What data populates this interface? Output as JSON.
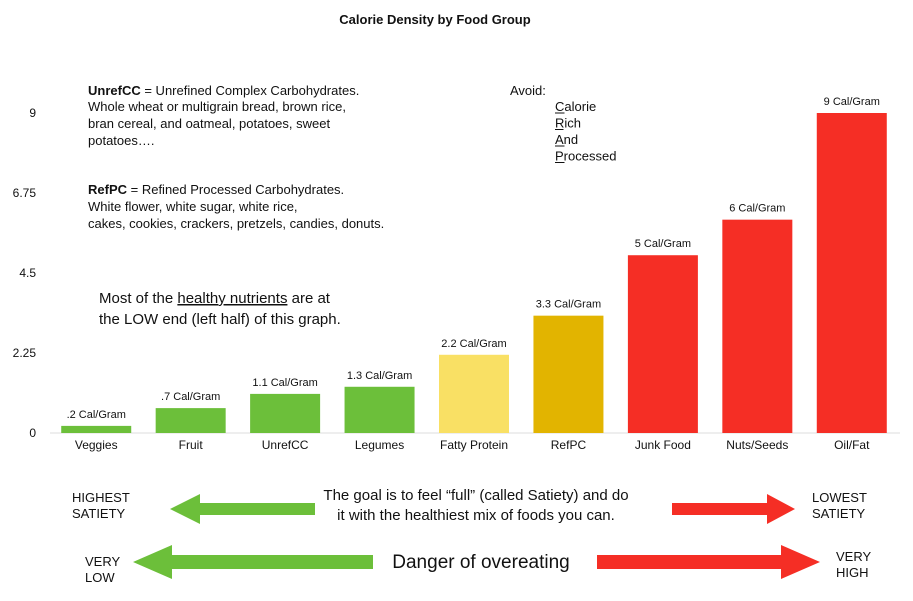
{
  "chart_data": {
    "type": "bar",
    "title": "Calorie Density by Food Group",
    "categories": [
      "Veggies",
      "Fruit",
      "UnrefCC",
      "Legumes",
      "Fatty Protein",
      "RefPC",
      "Junk Food",
      "Nuts/Seeds",
      "Oil/Fat"
    ],
    "values": [
      0.2,
      0.7,
      1.1,
      1.3,
      2.2,
      3.3,
      5,
      6,
      9
    ],
    "value_labels": [
      ".2 Cal/Gram",
      ".7 Cal/Gram",
      "1.1 Cal/Gram",
      "1.3 Cal/Gram",
      "2.2 Cal/Gram",
      "3.3 Cal/Gram",
      "5 Cal/Gram",
      "6 Cal/Gram",
      "9 Cal/Gram"
    ],
    "colors": [
      "#6cbf3a",
      "#6cbf3a",
      "#6cbf3a",
      "#6cbf3a",
      "#f9e064",
      "#e2b400",
      "#f52e25",
      "#f52e25",
      "#f52e25"
    ],
    "ylim": [
      0,
      9
    ],
    "yticks": [
      0,
      2.25,
      4.5,
      6.75,
      9
    ],
    "grid": false,
    "notes": {
      "unrefcc": {
        "term": "UnrefCC",
        "definition": " = Unrefined Complex Carbohydrates.",
        "lines": [
          "Whole wheat or multigrain bread, brown rice,",
          "bran cereal, and oatmeal, potatoes, sweet",
          "potatoes…."
        ]
      },
      "refpc": {
        "term": "RefPC",
        "definition": " = Refined Processed Carbohydrates.",
        "lines": [
          "White flower, white sugar, white rice,",
          "cakes, cookies, crackers, pretzels, candies, donuts."
        ]
      },
      "avoid": {
        "heading": "Avoid:",
        "words": [
          "Calorie",
          "Rich",
          "And",
          "Processed"
        ]
      },
      "nutrients": {
        "before": "Most of the ",
        "underlined": "healthy nutrients",
        "after": " are at",
        "line2": "the LOW end (left half) of this graph."
      }
    },
    "satiety": {
      "left": [
        "HIGHEST",
        "SATIETY"
      ],
      "right": [
        "LOWEST",
        "SATIETY"
      ],
      "message": [
        "The goal is to feel “full” (called Satiety) and do",
        "it with the healthiest mix of foods you can."
      ]
    },
    "overeating": {
      "left": [
        "VERY",
        "LOW"
      ],
      "right": [
        "VERY",
        "HIGH"
      ],
      "message": "Danger of overeating"
    }
  }
}
